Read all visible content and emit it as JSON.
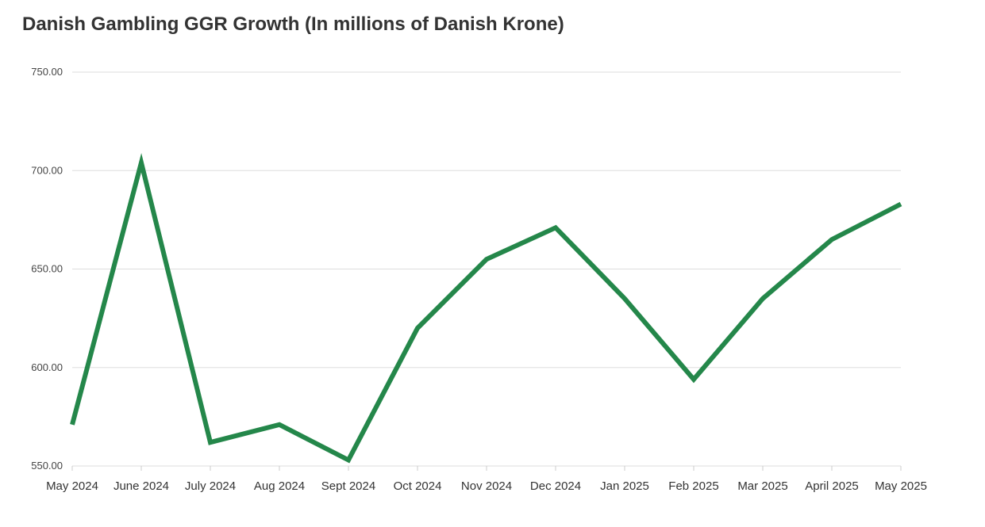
{
  "title": "Danish Gambling GGR Growth (In millions of Danish Krone)",
  "colors": {
    "line": "#24874a",
    "grid": "#dddddd",
    "text": "#333333"
  },
  "chart_data": {
    "type": "line",
    "title": "Danish Gambling GGR Growth (In millions of Danish Krone)",
    "xlabel": "",
    "ylabel": "",
    "categories": [
      "May 2024",
      "June 2024",
      "July 2024",
      "Aug 2024",
      "Sept 2024",
      "Oct 2024",
      "Nov 2024",
      "Dec 2024",
      "Jan 2025",
      "Feb 2025",
      "Mar 2025",
      "April 2025",
      "May 2025"
    ],
    "series": [
      {
        "values": [
          571,
          704,
          562,
          571,
          553,
          620,
          655,
          671,
          635,
          594,
          635,
          665,
          683
        ]
      }
    ],
    "ylim": [
      550,
      750
    ],
    "yticks": [
      550,
      600,
      650,
      700,
      750
    ],
    "ytick_labels": [
      "550.00",
      "600.00",
      "650.00",
      "700.00",
      "750.00"
    ],
    "grid": true,
    "legend": "none"
  }
}
